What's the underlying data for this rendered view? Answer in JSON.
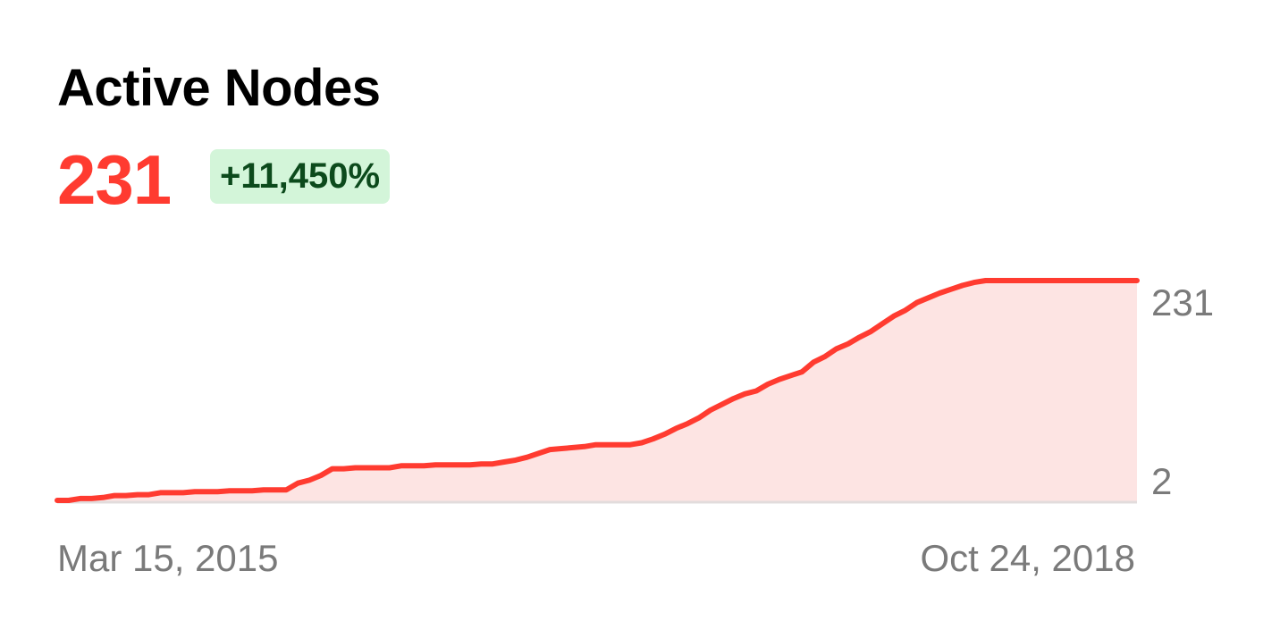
{
  "header": {
    "title": "Active Nodes",
    "current_value": "231",
    "change_badge": "+11,450%"
  },
  "colors": {
    "accent": "#ff3b30",
    "area_fill": "#fde4e3",
    "badge_bg": "#d3f5d9",
    "badge_text": "#0c4a1c",
    "axis_text": "#7a7a7a"
  },
  "chart_data": {
    "type": "area",
    "title": "Active Nodes",
    "xlabel": "",
    "ylabel": "",
    "x_start_label": "Mar 15, 2015",
    "x_end_label": "Oct 24, 2018",
    "y_tick_labels": [
      "231",
      "2"
    ],
    "ylim": [
      2,
      231
    ],
    "grid": false,
    "legend": "none",
    "series": [
      {
        "x": [
          "2015-03-15",
          "2015-03-29",
          "2015-04-12",
          "2015-04-26",
          "2015-05-10",
          "2015-05-24",
          "2015-06-07",
          "2015-06-21",
          "2015-07-05",
          "2015-07-19",
          "2015-08-02",
          "2015-08-16",
          "2015-08-30",
          "2015-09-13",
          "2015-09-27",
          "2015-10-11",
          "2015-10-25",
          "2015-11-08",
          "2015-11-22",
          "2015-12-06",
          "2015-12-20",
          "2016-01-03",
          "2016-01-17",
          "2016-01-31",
          "2016-02-14",
          "2016-02-28",
          "2016-03-13",
          "2016-03-27",
          "2016-04-10",
          "2016-04-24",
          "2016-05-08",
          "2016-05-22",
          "2016-06-05",
          "2016-06-19",
          "2016-07-03",
          "2016-07-17",
          "2016-07-31",
          "2016-08-14",
          "2016-08-28",
          "2016-09-11",
          "2016-09-25",
          "2016-10-09",
          "2016-10-23",
          "2016-11-06",
          "2016-11-20",
          "2016-12-04",
          "2016-12-18",
          "2017-01-01",
          "2017-01-15",
          "2017-01-29",
          "2017-02-12",
          "2017-02-26",
          "2017-03-12",
          "2017-03-26",
          "2017-04-09",
          "2017-04-23",
          "2017-05-07",
          "2017-05-21",
          "2017-06-04",
          "2017-06-18",
          "2017-07-02",
          "2017-07-16",
          "2017-07-30",
          "2017-08-13",
          "2017-08-27",
          "2017-09-10",
          "2017-09-24",
          "2017-10-08",
          "2017-10-22",
          "2017-11-05",
          "2017-11-19",
          "2017-12-03",
          "2017-12-17",
          "2017-12-31",
          "2018-01-14",
          "2018-01-28",
          "2018-02-11",
          "2018-02-25",
          "2018-03-11",
          "2018-03-25",
          "2018-04-08",
          "2018-04-22",
          "2018-05-06",
          "2018-05-20",
          "2018-06-03",
          "2018-06-17",
          "2018-07-01",
          "2018-07-15",
          "2018-07-29",
          "2018-08-12",
          "2018-08-26",
          "2018-09-09",
          "2018-09-23",
          "2018-10-07",
          "2018-10-24"
        ],
        "values": [
          2,
          2,
          4,
          4,
          5,
          7,
          7,
          8,
          8,
          10,
          10,
          10,
          11,
          11,
          11,
          12,
          12,
          12,
          13,
          13,
          13,
          20,
          23,
          28,
          35,
          35,
          36,
          36,
          36,
          36,
          38,
          38,
          38,
          39,
          39,
          39,
          39,
          40,
          40,
          42,
          44,
          47,
          51,
          55,
          56,
          57,
          58,
          60,
          60,
          60,
          60,
          62,
          66,
          71,
          77,
          82,
          88,
          96,
          102,
          108,
          113,
          116,
          123,
          128,
          132,
          136,
          146,
          152,
          160,
          165,
          172,
          178,
          186,
          194,
          200,
          208,
          213,
          218,
          222,
          226,
          229,
          231,
          231,
          231,
          231,
          231,
          231,
          231,
          231,
          231,
          231,
          231,
          231,
          231,
          231
        ]
      }
    ]
  }
}
